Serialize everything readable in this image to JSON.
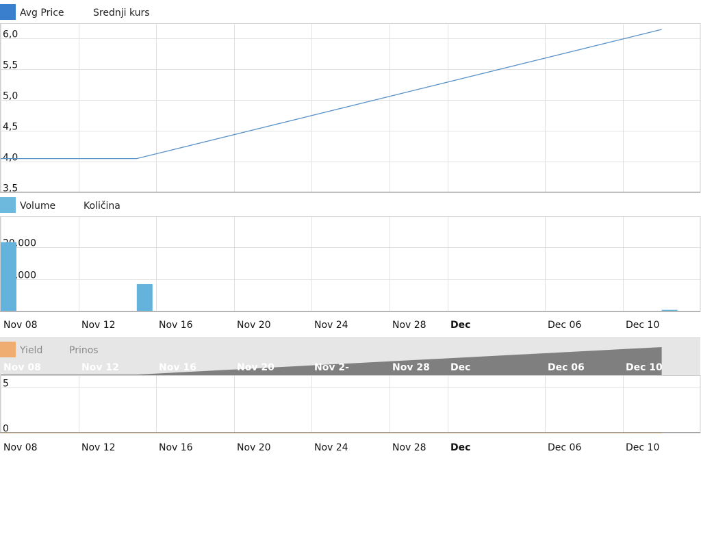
{
  "chart_data": [
    {
      "type": "line",
      "legend": {
        "label": "Avg Price",
        "label_alt": "Srednji kurs",
        "color": "#3a7fce"
      },
      "line_color": "#5b93c9",
      "x": [
        "2011-11-08",
        "2011-11-15",
        "2011-12-12"
      ],
      "values": [
        4.05,
        4.05,
        6.15
      ],
      "ylim": [
        3.5,
        6.25
      ],
      "yticks": [
        3.5,
        4.0,
        4.5,
        5.0,
        5.5,
        6.0
      ],
      "ytick_labels": [
        "3,5",
        "4,0",
        "4,5",
        "5,0",
        "5,5",
        "6,0"
      ],
      "grid": true
    },
    {
      "type": "bar",
      "legend": {
        "label": "Volume",
        "label_alt": "Količina",
        "color": "#6db8dd"
      },
      "bar_color": "#63b3dc",
      "x": [
        "2011-11-08",
        "2011-11-15",
        "2011-12-12"
      ],
      "values": [
        21500,
        8500,
        500
      ],
      "ylim": [
        0,
        29500
      ],
      "yticks": [
        0,
        10000,
        20000
      ],
      "ytick_labels": [
        "0",
        "10.000",
        "20.000"
      ],
      "grid": true
    },
    {
      "type": "line",
      "legend": {
        "label": "Yield",
        "label_alt": "Prinos",
        "color": "#f0ad72"
      },
      "line_color": "#d9a050",
      "x": [
        "2011-11-08",
        "2011-12-12"
      ],
      "values": [
        0,
        0
      ],
      "ylim": [
        0,
        6.4
      ],
      "yticks": [
        0,
        5
      ],
      "ytick_labels": [
        "0",
        "5"
      ],
      "grid": true
    }
  ],
  "x_axis": {
    "ticks": [
      {
        "date": "2011-11-08",
        "label": "Nov 08",
        "bold": false
      },
      {
        "date": "2011-11-12",
        "label": "Nov 12",
        "bold": false
      },
      {
        "date": "2011-11-16",
        "label": "Nov 16",
        "bold": false
      },
      {
        "date": "2011-11-20",
        "label": "Nov 20",
        "bold": false
      },
      {
        "date": "2011-11-24",
        "label": "Nov 24",
        "bold": false
      },
      {
        "date": "2011-11-28",
        "label": "Nov 28",
        "bold": false
      },
      {
        "date": "2011-12-01",
        "label": "Dec",
        "bold": true
      },
      {
        "date": "2011-12-06",
        "label": "Dec 06",
        "bold": false
      },
      {
        "date": "2011-12-10",
        "label": "Dec 10",
        "bold": false
      }
    ]
  },
  "navigator": {
    "fill_color": "#7f7f7f",
    "background_color": "#e6e6e6",
    "tick_labels": [
      "Nov 08",
      "Nov 12",
      "Nov 16",
      "Nov 20",
      "Nov 2-",
      "Nov 28",
      "Dec",
      "Dec 06",
      "Dec 10"
    ]
  }
}
